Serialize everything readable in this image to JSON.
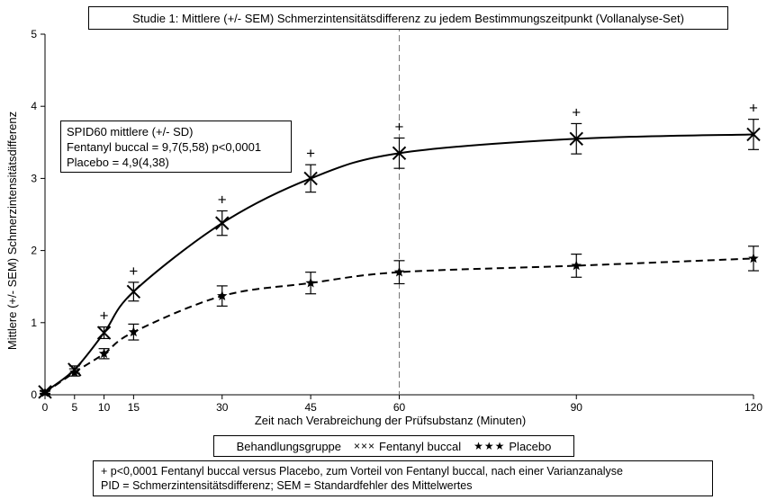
{
  "chart_data": {
    "type": "line",
    "title": "Studie 1: Mittlere (+/- SEM) Schmerzintensitätsdifferenz zu jedem Bestimmungszeitpunkt (Vollanalyse-Set)",
    "xlabel": "Zeit nach Verabreichung der Prüfsubstanz (Minuten)",
    "ylabel": "Mittlere (+/- SEM) Schmerzintensitätsdifferenz",
    "xlim": [
      0,
      120
    ],
    "ylim": [
      0,
      5
    ],
    "x_ticks": [
      "0",
      "5",
      "10",
      "15",
      "30",
      "45",
      "60",
      "90",
      "120"
    ],
    "y_ticks": [
      "0",
      "1",
      "2",
      "3",
      "4",
      "5"
    ],
    "x": [
      0,
      5,
      10,
      15,
      30,
      45,
      60,
      90,
      120
    ],
    "reference_line_x": 60,
    "series": [
      {
        "name": "Fentanyl buccal",
        "marker": "×",
        "line_style": "solid",
        "values": [
          0.04,
          0.35,
          0.86,
          1.43,
          2.38,
          3.0,
          3.35,
          3.55,
          3.61
        ],
        "sem": [
          0.02,
          0.05,
          0.08,
          0.13,
          0.17,
          0.19,
          0.21,
          0.21,
          0.21
        ],
        "significance_marks": [
          false,
          false,
          true,
          true,
          true,
          true,
          true,
          true,
          true
        ]
      },
      {
        "name": "Placebo",
        "marker": "★",
        "line_style": "dashed",
        "values": [
          0.03,
          0.31,
          0.57,
          0.87,
          1.37,
          1.55,
          1.7,
          1.79,
          1.89
        ],
        "sem": [
          0.02,
          0.05,
          0.07,
          0.11,
          0.14,
          0.15,
          0.16,
          0.16,
          0.17
        ]
      }
    ],
    "significance_symbol": "+"
  },
  "stats_box": {
    "line1": "SPID60 mittlere (+/- SD)",
    "line2": "Fentanyl buccal = 9,7(5,58) p<0,0001",
    "line3": "Placebo = 4,9(4,38)"
  },
  "legend": {
    "label": "Behandlungsgruppe",
    "fentanyl_marker": "×××",
    "fentanyl_label": "Fentanyl buccal",
    "placebo_marker": "★★★",
    "placebo_label": "Placebo"
  },
  "footnote": {
    "line1": "+ p<0,0001 Fentanyl buccal versus Placebo, zum Vorteil von Fentanyl buccal, nach einer Varianzanalyse",
    "line2": "PID = Schmerzintensitätsdifferenz; SEM = Standardfehler des Mittelwertes"
  }
}
